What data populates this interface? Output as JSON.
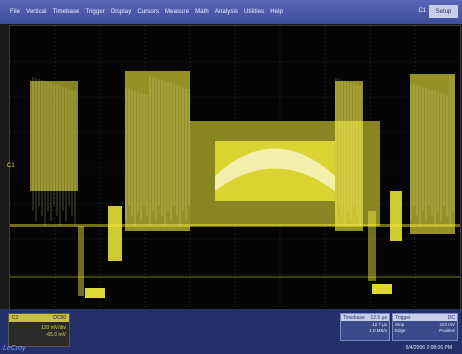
{
  "menu": [
    "File",
    "Vertical",
    "Timebase",
    "Trigger",
    "Display",
    "Cursors",
    "Measure",
    "Math",
    "Analysis",
    "Utilities",
    "Help"
  ],
  "channel_indicator": "C1",
  "setup_label": "Setup",
  "trace_marker": "C1",
  "channel_box": {
    "name": "C1",
    "tag": "DC50",
    "scale": "120 mV/div",
    "offset": "-65.0 mV"
  },
  "brand": "LeCroy",
  "timebase_box": {
    "title": "Timebase",
    "value": "12.5 μs",
    "rows": [
      [
        "",
        "12.7 μs"
      ],
      [
        "",
        "1.0 MS/s"
      ]
    ]
  },
  "trigger_box": {
    "title": "Trigger",
    "tag": "DC",
    "rows": [
      [
        "Stop",
        "224 mV"
      ],
      [
        "Edge",
        "Positive"
      ]
    ]
  },
  "datetime": "5/4/2006 2:08:06 PM",
  "colors": {
    "trace": "#f5ef3a",
    "menubar": "#4755a6",
    "setup": "#c8cfea"
  }
}
